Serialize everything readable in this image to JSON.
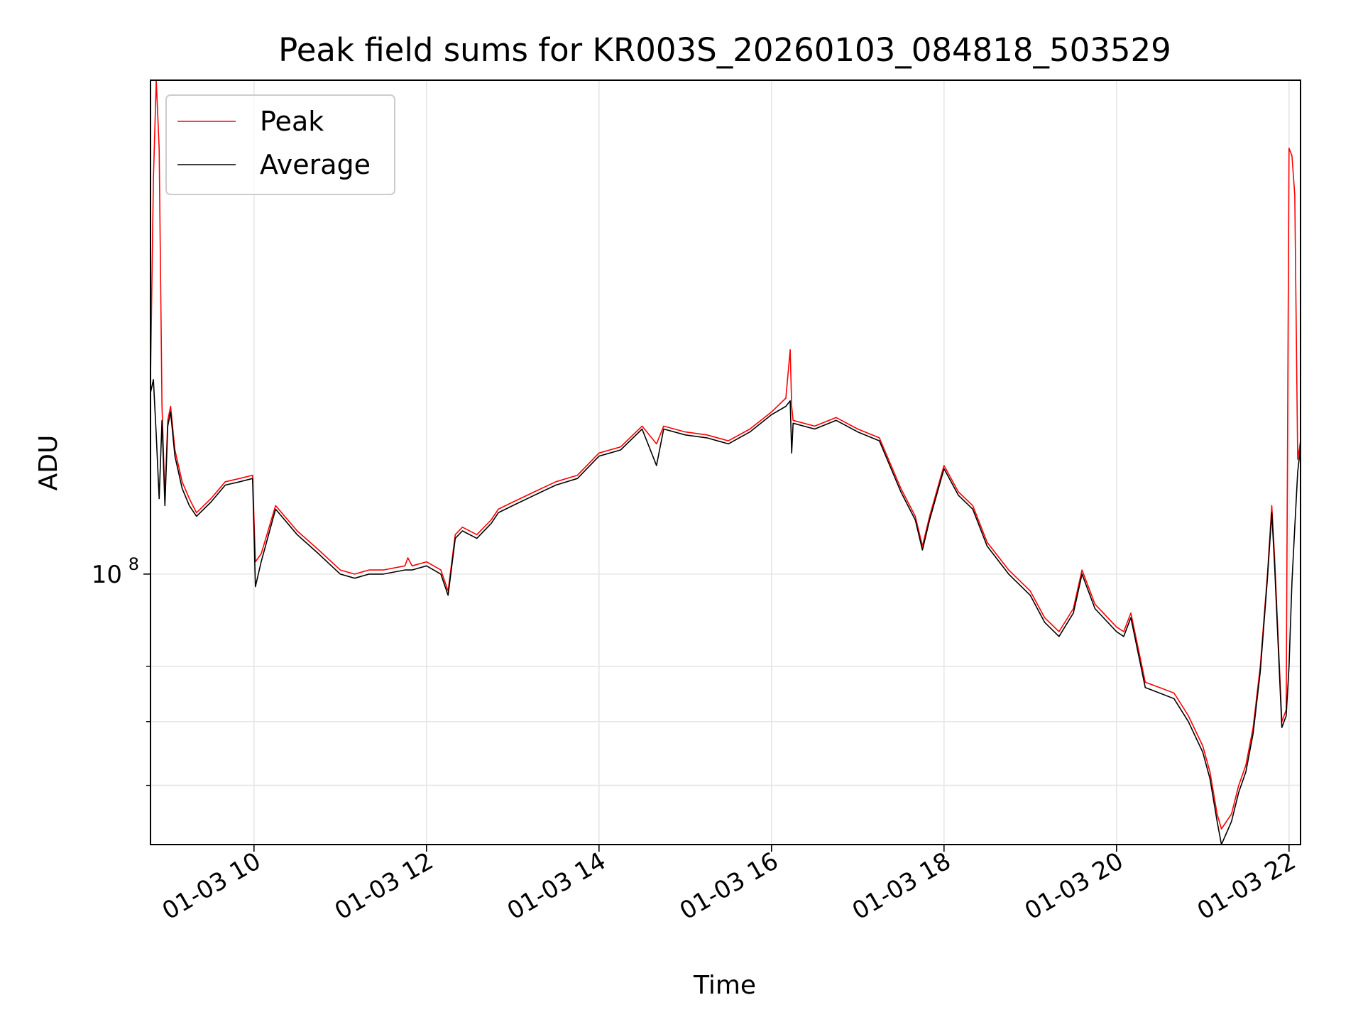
{
  "chart_data": {
    "type": "line",
    "title": "Peak field sums for KR003S_20260103_084818_503529",
    "xlabel": "Time",
    "ylabel": "ADU",
    "yscale": "log",
    "grid": true,
    "legend": "top-left",
    "xlim": [
      "01-03 08:48",
      "01-03 22:08"
    ],
    "ylim": [
      52000000,
      330000000
    ],
    "x_ticks": [
      "01-03 10",
      "01-03 12",
      "01-03 14",
      "01-03 16",
      "01-03 18",
      "01-03 20",
      "01-03 22"
    ],
    "y_major_ticks": [
      {
        "value": 100000000,
        "base": "10",
        "exp": "8"
      }
    ],
    "y_minor_ticks": [
      60000000,
      70000000,
      80000000
    ],
    "colors": {
      "peak": "#ff0000",
      "average": "#000000",
      "grid": "#e6e6e6"
    },
    "series": [
      {
        "name": "Peak",
        "color": "#ff0000",
        "x": [
          "01-03 08:48",
          "01-03 08:50",
          "01-03 08:52",
          "01-03 08:54",
          "01-03 08:56",
          "01-03 08:58",
          "01-03 09:00",
          "01-03 09:02",
          "01-03 09:05",
          "01-03 09:10",
          "01-03 09:15",
          "01-03 09:20",
          "01-03 09:30",
          "01-03 09:40",
          "01-03 09:50",
          "01-03 09:59",
          "01-03 10:01",
          "01-03 10:05",
          "01-03 10:15",
          "01-03 10:30",
          "01-03 10:45",
          "01-03 11:00",
          "01-03 11:10",
          "01-03 11:20",
          "01-03 11:30",
          "01-03 11:45",
          "01-03 11:47",
          "01-03 11:50",
          "01-03 12:00",
          "01-03 12:10",
          "01-03 12:15",
          "01-03 12:20",
          "01-03 12:25",
          "01-03 12:35",
          "01-03 12:45",
          "01-03 12:50",
          "01-03 13:00",
          "01-03 13:15",
          "01-03 13:30",
          "01-03 13:45",
          "01-03 14:00",
          "01-03 14:15",
          "01-03 14:30",
          "01-03 14:40",
          "01-03 14:45",
          "01-03 15:00",
          "01-03 15:15",
          "01-03 15:30",
          "01-03 15:45",
          "01-03 16:00",
          "01-03 16:10",
          "01-03 16:13",
          "01-03 16:14",
          "01-03 16:15",
          "01-03 16:30",
          "01-03 16:45",
          "01-03 17:00",
          "01-03 17:15",
          "01-03 17:30",
          "01-03 17:40",
          "01-03 17:45",
          "01-03 17:50",
          "01-03 18:00",
          "01-03 18:10",
          "01-03 18:20",
          "01-03 18:30",
          "01-03 18:45",
          "01-03 19:00",
          "01-03 19:10",
          "01-03 19:20",
          "01-03 19:30",
          "01-03 19:36",
          "01-03 19:45",
          "01-03 20:00",
          "01-03 20:05",
          "01-03 20:10",
          "01-03 20:20",
          "01-03 20:30",
          "01-03 20:40",
          "01-03 20:50",
          "01-03 21:00",
          "01-03 21:05",
          "01-03 21:10",
          "01-03 21:13",
          "01-03 21:20",
          "01-03 21:25",
          "01-03 21:30",
          "01-03 21:35",
          "01-03 21:40",
          "01-03 21:45",
          "01-03 21:48",
          "01-03 21:50",
          "01-03 21:55",
          "01-03 21:58",
          "01-03 22:00",
          "01-03 22:02",
          "01-03 22:04",
          "01-03 22:06",
          "01-03 22:08"
        ],
        "y": [
          160000000,
          260000000,
          330000000,
          280000000,
          150000000,
          120000000,
          145000000,
          150000000,
          135000000,
          125000000,
          120000000,
          116000000,
          120000000,
          125000000,
          126000000,
          127000000,
          103000000,
          105000000,
          118000000,
          111000000,
          106000000,
          101000000,
          100000000,
          101000000,
          101000000,
          102000000,
          104000000,
          102000000,
          103000000,
          101000000,
          96000000,
          110000000,
          112000000,
          110000000,
          114000000,
          117000000,
          119000000,
          122000000,
          125000000,
          127000000,
          134000000,
          136000000,
          143000000,
          137000000,
          143000000,
          141000000,
          140000000,
          138000000,
          142000000,
          148000000,
          153000000,
          172000000,
          150000000,
          145000000,
          143000000,
          146000000,
          142000000,
          139000000,
          123000000,
          115000000,
          107000000,
          115000000,
          130000000,
          122000000,
          118000000,
          108000000,
          101000000,
          96000000,
          90000000,
          87000000,
          92000000,
          101000000,
          93000000,
          88000000,
          87000000,
          91000000,
          77000000,
          76000000,
          75000000,
          71000000,
          66000000,
          62000000,
          56000000,
          54000000,
          56000000,
          60000000,
          63000000,
          69000000,
          80000000,
          100000000,
          118000000,
          104000000,
          70000000,
          72000000,
          280000000,
          275000000,
          250000000,
          132000000,
          138000000
        ]
      },
      {
        "name": "Average",
        "color": "#000000",
        "x": [
          "01-03 08:48",
          "01-03 08:50",
          "01-03 08:52",
          "01-03 08:54",
          "01-03 08:56",
          "01-03 08:58",
          "01-03 09:00",
          "01-03 09:02",
          "01-03 09:05",
          "01-03 09:10",
          "01-03 09:15",
          "01-03 09:20",
          "01-03 09:30",
          "01-03 09:40",
          "01-03 09:50",
          "01-03 09:59",
          "01-03 10:01",
          "01-03 10:05",
          "01-03 10:15",
          "01-03 10:30",
          "01-03 10:45",
          "01-03 11:00",
          "01-03 11:10",
          "01-03 11:20",
          "01-03 11:30",
          "01-03 11:45",
          "01-03 11:47",
          "01-03 11:50",
          "01-03 12:00",
          "01-03 12:10",
          "01-03 12:15",
          "01-03 12:20",
          "01-03 12:25",
          "01-03 12:35",
          "01-03 12:45",
          "01-03 12:50",
          "01-03 13:00",
          "01-03 13:15",
          "01-03 13:30",
          "01-03 13:45",
          "01-03 14:00",
          "01-03 14:15",
          "01-03 14:30",
          "01-03 14:40",
          "01-03 14:45",
          "01-03 15:00",
          "01-03 15:15",
          "01-03 15:30",
          "01-03 15:45",
          "01-03 16:00",
          "01-03 16:10",
          "01-03 16:13",
          "01-03 16:14",
          "01-03 16:15",
          "01-03 16:30",
          "01-03 16:45",
          "01-03 17:00",
          "01-03 17:15",
          "01-03 17:30",
          "01-03 17:40",
          "01-03 17:45",
          "01-03 17:50",
          "01-03 18:00",
          "01-03 18:10",
          "01-03 18:20",
          "01-03 18:30",
          "01-03 18:45",
          "01-03 19:00",
          "01-03 19:10",
          "01-03 19:20",
          "01-03 19:30",
          "01-03 19:36",
          "01-03 19:45",
          "01-03 20:00",
          "01-03 20:05",
          "01-03 20:10",
          "01-03 20:20",
          "01-03 20:30",
          "01-03 20:40",
          "01-03 20:50",
          "01-03 21:00",
          "01-03 21:05",
          "01-03 21:10",
          "01-03 21:13",
          "01-03 21:20",
          "01-03 21:25",
          "01-03 21:30",
          "01-03 21:35",
          "01-03 21:40",
          "01-03 21:45",
          "01-03 21:48",
          "01-03 21:50",
          "01-03 21:55",
          "01-03 21:58",
          "01-03 22:00",
          "01-03 22:02",
          "01-03 22:04",
          "01-03 22:06",
          "01-03 22:08"
        ],
        "y": [
          155000000,
          160000000,
          140000000,
          120000000,
          145000000,
          118000000,
          143000000,
          148000000,
          133000000,
          123000000,
          118000000,
          115000000,
          119000000,
          124000000,
          125000000,
          126000000,
          97000000,
          103000000,
          117000000,
          110000000,
          105000000,
          100000000,
          99000000,
          100000000,
          100000000,
          101000000,
          101000000,
          101000000,
          102000000,
          100000000,
          95000000,
          109000000,
          111000000,
          109000000,
          113000000,
          116000000,
          118000000,
          121000000,
          124000000,
          126000000,
          133000000,
          135000000,
          142000000,
          130000000,
          142000000,
          140000000,
          139000000,
          137000000,
          141000000,
          147000000,
          150000000,
          152000000,
          134000000,
          144000000,
          142000000,
          145000000,
          141000000,
          138000000,
          122000000,
          114000000,
          106000000,
          114000000,
          129000000,
          121000000,
          117000000,
          107000000,
          100000000,
          95000000,
          89000000,
          86000000,
          91000000,
          100000000,
          92000000,
          87000000,
          86000000,
          90000000,
          76000000,
          75000000,
          74000000,
          70000000,
          65000000,
          61000000,
          55000000,
          52000000,
          55000000,
          59000000,
          62000000,
          68000000,
          79000000,
          99000000,
          116000000,
          102000000,
          69000000,
          71000000,
          80000000,
          98000000,
          112000000,
          128000000,
          136000000
        ]
      }
    ]
  }
}
